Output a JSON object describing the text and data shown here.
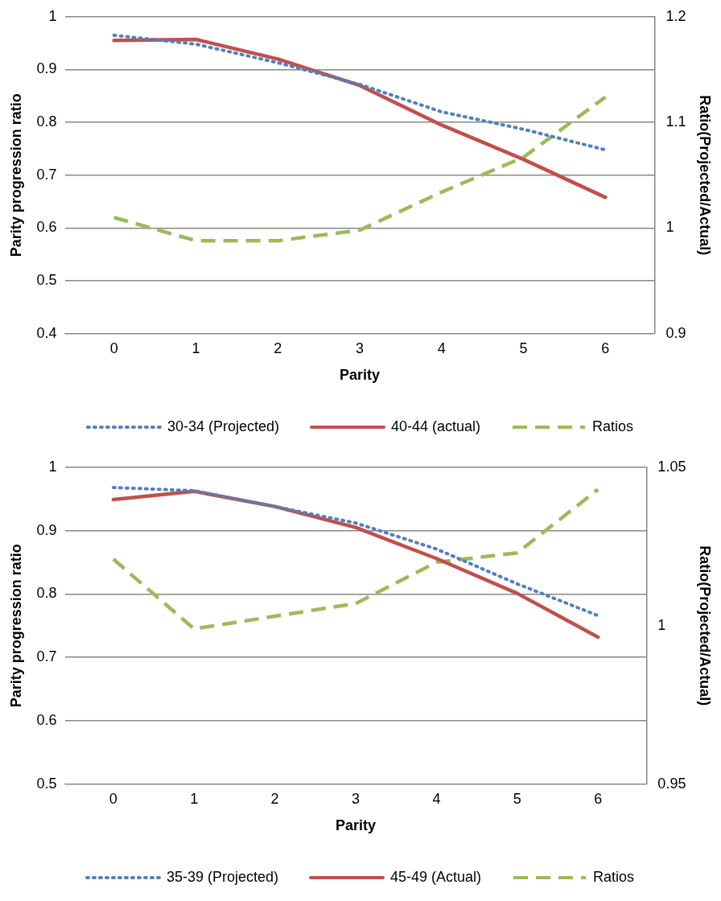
{
  "chart_data": [
    {
      "type": "line",
      "xlabel": "Parity",
      "ylabel": "Parity progression ratio",
      "y2label": "Ratio(Projected/Actual)",
      "x": [
        0,
        1,
        2,
        3,
        4,
        5,
        6
      ],
      "xlim": [
        -0.6,
        6.6
      ],
      "xticks": [
        0,
        1,
        2,
        3,
        4,
        5,
        6
      ],
      "ylim": [
        0.4,
        1
      ],
      "yticks": [
        0.4,
        0.5,
        0.6,
        0.7,
        0.8,
        0.9,
        1
      ],
      "y2lim": [
        0.9,
        1.2
      ],
      "y2ticks": [
        0.9,
        1,
        1.1,
        1.2
      ],
      "grid": "y",
      "legend": "bottom",
      "marker": "none",
      "series": [
        {
          "name": "30-34 (Projected)",
          "color": "#4f81bd",
          "line_style": "dotted",
          "values": [
            0.965,
            0.948,
            0.913,
            0.872,
            0.82,
            0.787,
            0.748
          ]
        },
        {
          "name": "40-44 (actual)",
          "color": "#c0504d",
          "line_style": "solid",
          "values": [
            0.955,
            0.957,
            0.92,
            0.87,
            0.795,
            0.73,
            0.658
          ]
        },
        {
          "name": "Ratios",
          "color": "#9bbb59",
          "line_style": "dashed",
          "axis": "y2",
          "values": [
            1.01,
            0.988,
            0.988,
            0.998,
            1.034,
            1.067,
            1.124
          ]
        }
      ]
    },
    {
      "type": "line",
      "xlabel": "Parity",
      "ylabel": "Parity progression ratio",
      "y2label": "Ratio(Projected/Actual)",
      "x": [
        0,
        1,
        2,
        3,
        4,
        5,
        6
      ],
      "xlim": [
        -0.6,
        6.6
      ],
      "xticks": [
        0,
        1,
        2,
        3,
        4,
        5,
        6
      ],
      "ylim": [
        0.5,
        1
      ],
      "yticks": [
        0.5,
        0.6,
        0.7,
        0.8,
        0.9,
        1
      ],
      "y2lim": [
        0.95,
        1.05
      ],
      "y2ticks": [
        0.95,
        1,
        1.05
      ],
      "grid": "y",
      "legend": "bottom",
      "marker": "none",
      "series": [
        {
          "name": "35-39 (Projected)",
          "color": "#4f81bd",
          "line_style": "dotted",
          "values": [
            0.968,
            0.963,
            0.938,
            0.912,
            0.871,
            0.816,
            0.766
          ]
        },
        {
          "name": "45-49 (Actual)",
          "color": "#c0504d",
          "line_style": "solid",
          "values": [
            0.949,
            0.962,
            0.938,
            0.905,
            0.856,
            0.801,
            0.732
          ]
        },
        {
          "name": "Ratios",
          "color": "#9bbb59",
          "line_style": "dashed",
          "axis": "y2",
          "values": [
            1.021,
            0.999,
            1.003,
            1.007,
            1.02,
            1.023,
            1.043
          ]
        }
      ]
    }
  ]
}
